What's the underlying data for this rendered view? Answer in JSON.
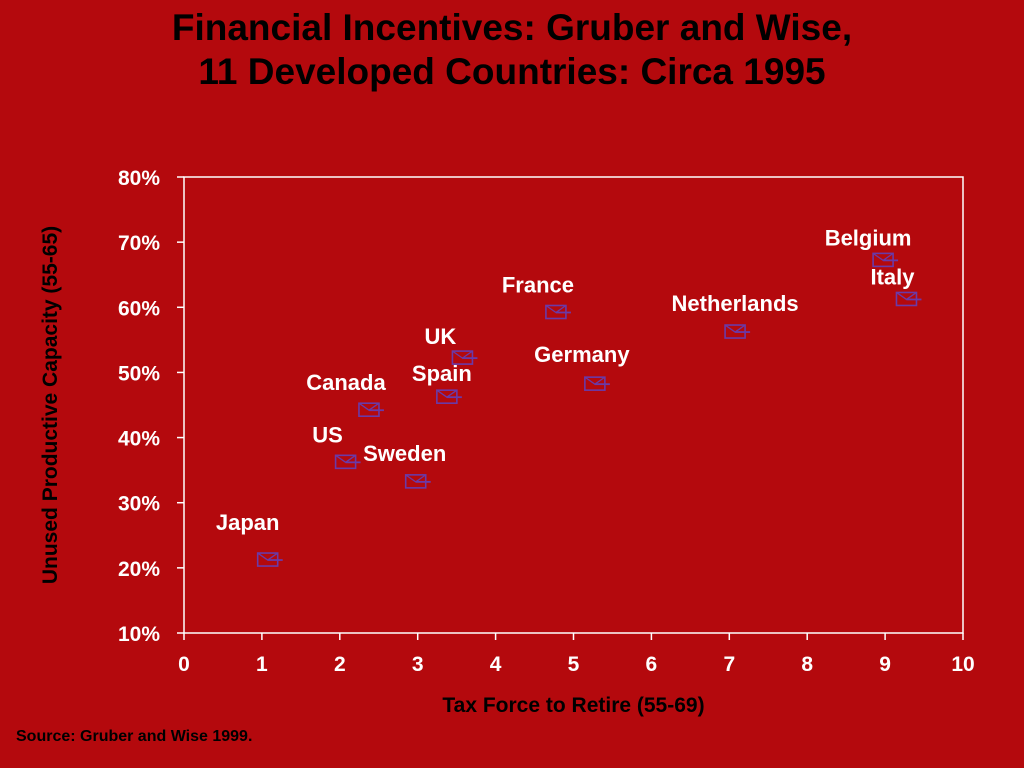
{
  "title_lines": [
    "Financial Incentives: Gruber and Wise,",
    "11 Developed Countries:  Circa 1995"
  ],
  "source": "Source:  Gruber and Wise 1999.",
  "colors": {
    "background": "#b4090d",
    "text": "#000000",
    "label_text": "#ffffff",
    "marker": "#6a3aa8",
    "frame": "#ffffff"
  },
  "chart_data": {
    "type": "scatter",
    "xlabel": "Tax Force to Retire (55-69)",
    "ylabel": "Unused Productive Capacity (55-65)",
    "xlim": [
      0,
      10
    ],
    "ylim": [
      10,
      80
    ],
    "x_ticks": [
      0,
      1,
      2,
      3,
      4,
      5,
      6,
      7,
      8,
      9,
      10
    ],
    "x_tick_labels": [
      "0",
      "1",
      "2",
      "3",
      "4",
      "5",
      "6",
      "7",
      "8",
      "9",
      "10"
    ],
    "y_ticks": [
      10,
      20,
      30,
      40,
      50,
      60,
      70,
      80
    ],
    "y_tick_labels": [
      "10%",
      "20%",
      "30%",
      "40%",
      "50%",
      "60%",
      "70%",
      "80%"
    ],
    "grid": false,
    "legend": "none",
    "marker_icon": "envelope-icon",
    "points": [
      {
        "label": "Japan",
        "x": 1.1,
        "y": 21.2
      },
      {
        "label": "US",
        "x": 2.1,
        "y": 36.2
      },
      {
        "label": "Canada",
        "x": 2.4,
        "y": 44.2
      },
      {
        "label": "Sweden",
        "x": 3.0,
        "y": 33.2
      },
      {
        "label": "Spain",
        "x": 3.4,
        "y": 46.2
      },
      {
        "label": "UK",
        "x": 3.6,
        "y": 52.2
      },
      {
        "label": "France",
        "x": 4.8,
        "y": 59.2
      },
      {
        "label": "Germany",
        "x": 5.3,
        "y": 48.2
      },
      {
        "label": "Netherlands",
        "x": 7.1,
        "y": 56.2
      },
      {
        "label": "Belgium",
        "x": 9.0,
        "y": 67.2
      },
      {
        "label": "Italy",
        "x": 9.3,
        "y": 61.2
      }
    ]
  }
}
